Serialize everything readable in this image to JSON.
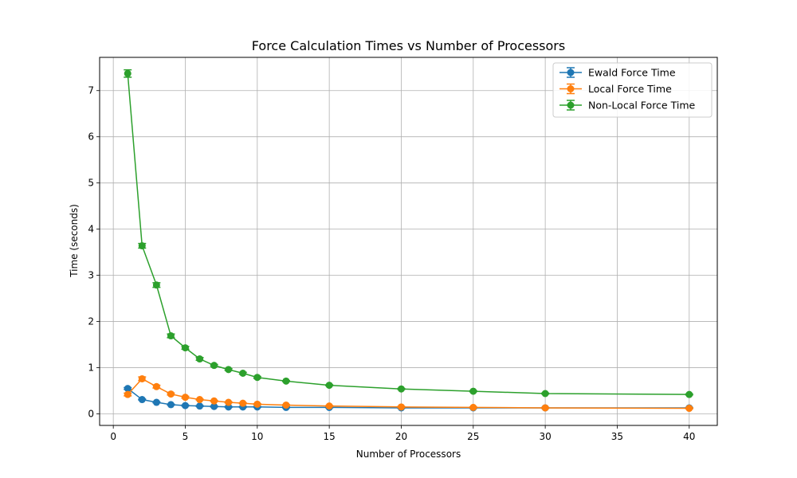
{
  "chart_data": {
    "type": "line",
    "title": "Force Calculation Times vs Number of Processors",
    "xlabel": "Number of Processors",
    "ylabel": "Time (seconds)",
    "xlim": [
      -0.95,
      41.95
    ],
    "ylim": [
      -0.25,
      7.72
    ],
    "xticks": [
      0,
      5,
      10,
      15,
      20,
      25,
      30,
      35,
      40
    ],
    "yticks": [
      0,
      1,
      2,
      3,
      4,
      5,
      6,
      7
    ],
    "grid": true,
    "legend_position": "top-right",
    "x": [
      1,
      2,
      3,
      4,
      5,
      6,
      7,
      8,
      9,
      10,
      12,
      15,
      20,
      25,
      30,
      40
    ],
    "series": [
      {
        "name": "Ewald Force Time",
        "color": "#1f77b4",
        "values": [
          0.55,
          0.31,
          0.25,
          0.2,
          0.18,
          0.17,
          0.16,
          0.15,
          0.15,
          0.15,
          0.14,
          0.14,
          0.13,
          0.13,
          0.13,
          0.13
        ],
        "errors": [
          0.02,
          0.01,
          0.01,
          0.01,
          0.01,
          0.01,
          0.01,
          0.01,
          0.01,
          0.01,
          0.01,
          0.01,
          0.01,
          0.01,
          0.01,
          0.01
        ]
      },
      {
        "name": "Local Force Time",
        "color": "#ff7f0e",
        "values": [
          0.42,
          0.76,
          0.59,
          0.43,
          0.36,
          0.31,
          0.28,
          0.25,
          0.23,
          0.21,
          0.19,
          0.17,
          0.15,
          0.14,
          0.13,
          0.12
        ],
        "errors": [
          0.03,
          0.04,
          0.03,
          0.02,
          0.02,
          0.01,
          0.01,
          0.01,
          0.01,
          0.01,
          0.01,
          0.01,
          0.01,
          0.01,
          0.01,
          0.01
        ]
      },
      {
        "name": "Non-Local Force Time",
        "color": "#2ca02c",
        "values": [
          7.37,
          3.64,
          2.79,
          1.69,
          1.43,
          1.19,
          1.05,
          0.96,
          0.88,
          0.79,
          0.71,
          0.62,
          0.54,
          0.49,
          0.44,
          0.42
        ],
        "errors": [
          0.08,
          0.05,
          0.05,
          0.04,
          0.03,
          0.03,
          0.02,
          0.02,
          0.02,
          0.02,
          0.01,
          0.01,
          0.01,
          0.01,
          0.01,
          0.01
        ]
      }
    ]
  }
}
